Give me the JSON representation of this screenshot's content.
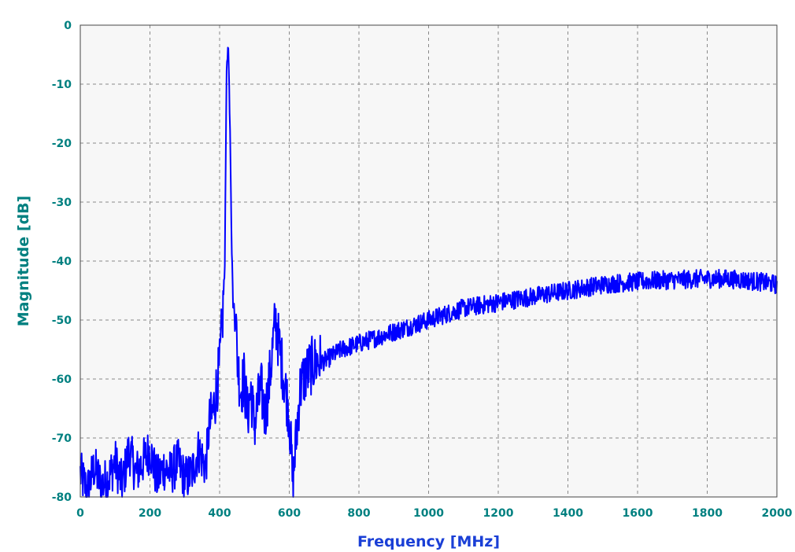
{
  "chart_data": {
    "type": "line",
    "title": "",
    "xlabel": "Frequency [MHz]",
    "ylabel": "Magnitude [dB]",
    "xlim": [
      0,
      2000
    ],
    "ylim": [
      -80,
      0
    ],
    "grid": true,
    "legend": "none",
    "x_ticks": [
      0,
      200,
      400,
      600,
      800,
      1000,
      1200,
      1400,
      1600,
      1800,
      2000
    ],
    "y_ticks": [
      0,
      -10,
      -20,
      -30,
      -40,
      -50,
      -60,
      -70,
      -80
    ],
    "series": [
      {
        "color": "#0000ff",
        "x": [
          0,
          20,
          40,
          60,
          80,
          100,
          120,
          140,
          160,
          180,
          200,
          220,
          240,
          260,
          280,
          300,
          320,
          340,
          360,
          370,
          380,
          390,
          400,
          410,
          415,
          420,
          425,
          430,
          435,
          440,
          445,
          450,
          460,
          470,
          480,
          490,
          500,
          510,
          520,
          530,
          540,
          550,
          560,
          570,
          580,
          590,
          600,
          610,
          620,
          630,
          640,
          650,
          660,
          680,
          700,
          750,
          800,
          850,
          900,
          950,
          1000,
          1050,
          1100,
          1150,
          1200,
          1250,
          1300,
          1350,
          1400,
          1450,
          1500,
          1550,
          1600,
          1650,
          1700,
          1750,
          1800,
          1850,
          1900,
          1950,
          2000
        ],
        "y": [
          -76,
          -79,
          -75,
          -78,
          -77,
          -74,
          -78,
          -72,
          -76,
          -74,
          -72,
          -77,
          -75,
          -76,
          -74,
          -77,
          -76,
          -72,
          -75,
          -68,
          -66,
          -62,
          -58,
          -48,
          -40,
          -8,
          -3,
          -18,
          -38,
          -50,
          -46,
          -56,
          -62,
          -60,
          -66,
          -62,
          -68,
          -64,
          -62,
          -66,
          -62,
          -56,
          -50,
          -54,
          -58,
          -62,
          -66,
          -78,
          -70,
          -62,
          -60,
          -59,
          -58,
          -57,
          -57,
          -55,
          -54,
          -53,
          -52,
          -51,
          -50,
          -49,
          -48,
          -47.5,
          -47,
          -46.5,
          -46,
          -45.5,
          -45,
          -44.5,
          -44,
          -43.7,
          -43.5,
          -43.3,
          -43.2,
          -43.1,
          -43,
          -43,
          -43.2,
          -43.5,
          -44
        ]
      }
    ]
  }
}
